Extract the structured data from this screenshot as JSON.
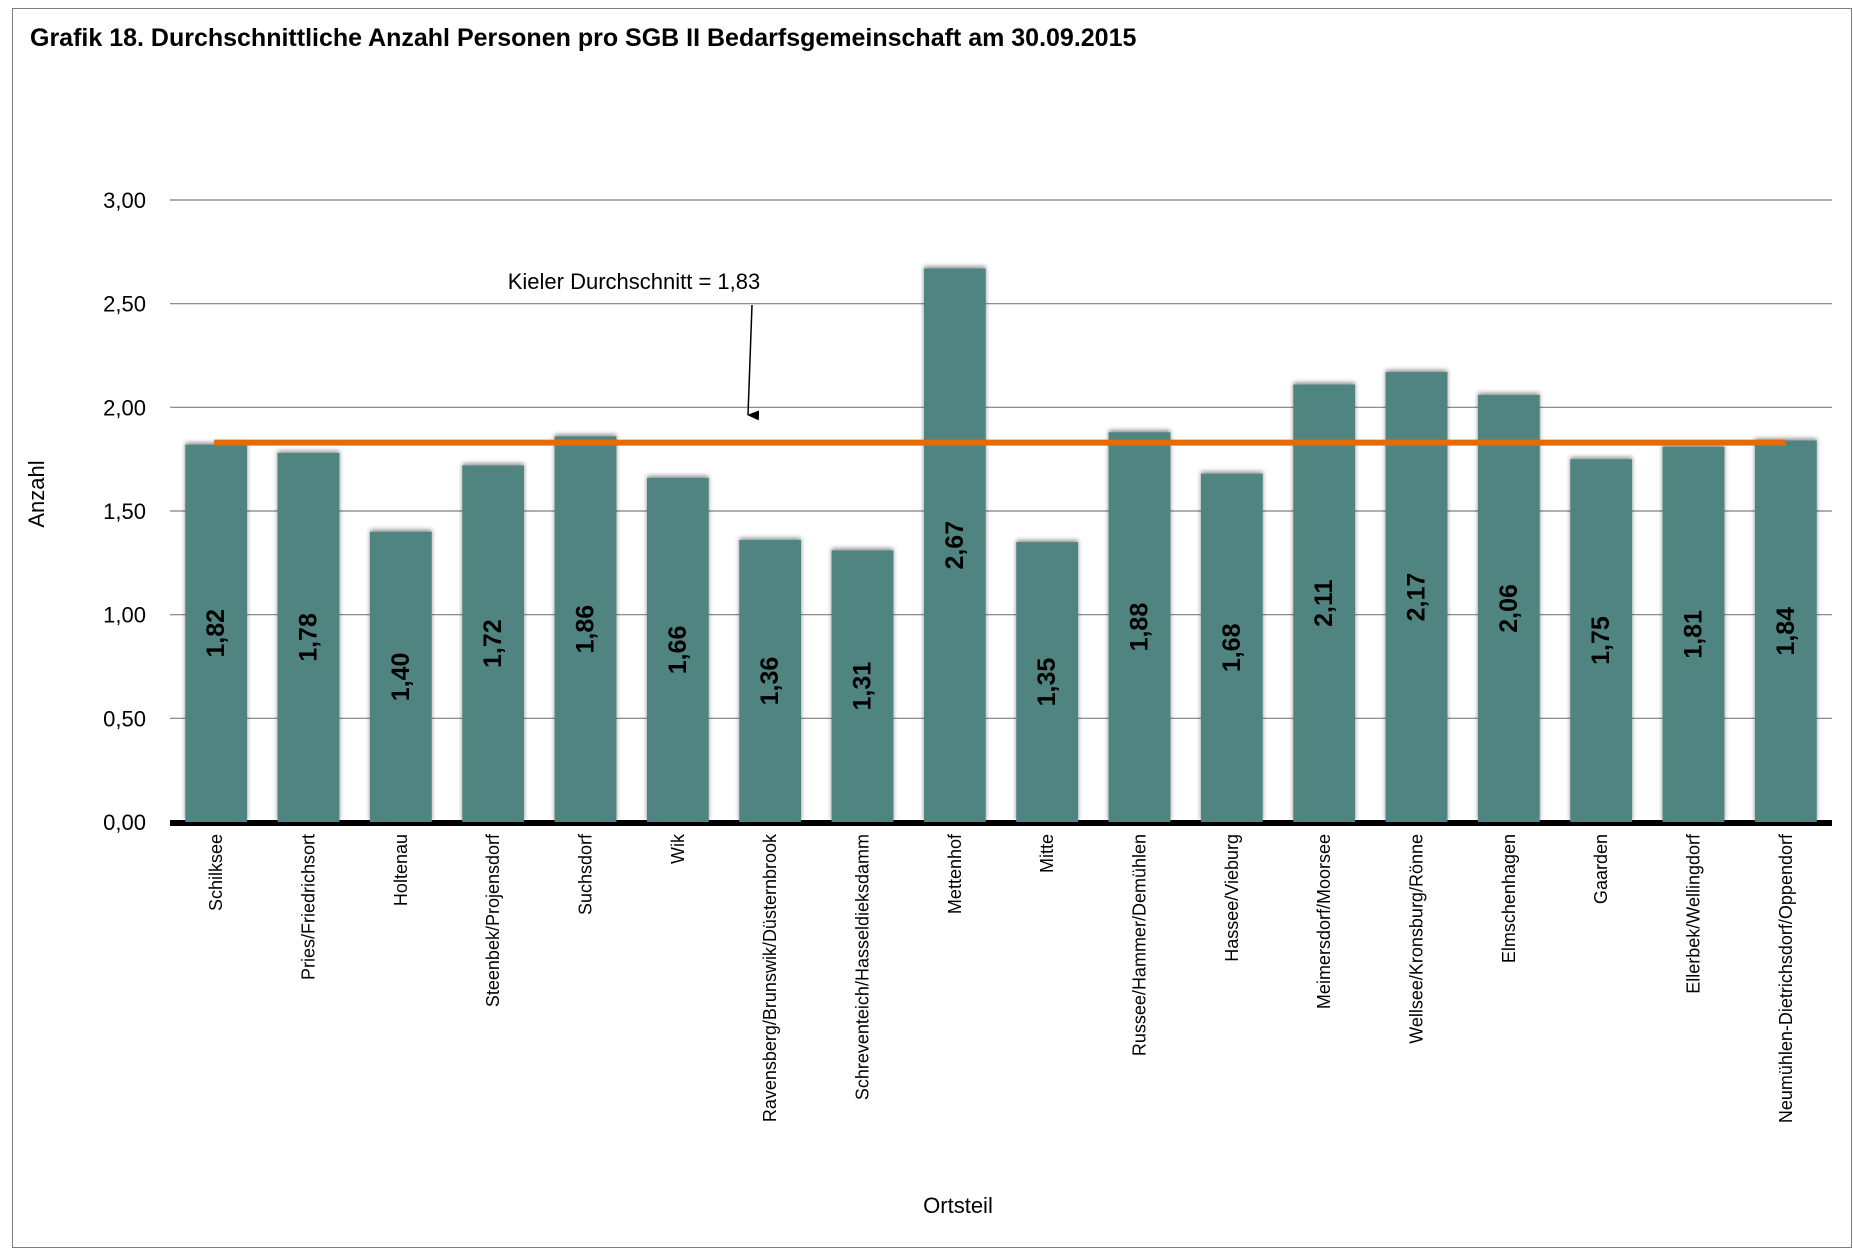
{
  "chart_data": {
    "type": "bar",
    "title": "Grafik 18.  Durchschnittliche Anzahl Personen pro SGB II Bedarfsgemeinschaft am 30.09.2015",
    "xlabel": "Ortsteil",
    "ylabel": "Anzahl",
    "ylim": [
      0,
      3
    ],
    "yticks": [
      "0,00",
      "0,50",
      "1,00",
      "1,50",
      "2,00",
      "2,50",
      "3,00"
    ],
    "grid": true,
    "categories": [
      "Schilksee",
      "Pries/Friedrichsort",
      "Holtenau",
      "Steenbek/Projensdorf",
      "Suchsdorf",
      "Wik",
      "Ravensberg/Brunswik/Düsternbrook",
      "Schreventeich/Hasseldieksdamm",
      "Mettenhof",
      "Mitte",
      "Russee/Hammer/Demühlen",
      "Hassee/Vieburg",
      "Meimersdorf/Moorsee",
      "Wellsee/Kronsburg/Rönne",
      "Elmschenhagen",
      "Gaarden",
      "Ellerbek/Wellingdorf",
      "Neumühlen-Dietrichsdorf/Oppendorf"
    ],
    "values": [
      1.82,
      1.78,
      1.4,
      1.72,
      1.86,
      1.66,
      1.36,
      1.31,
      2.67,
      1.35,
      1.88,
      1.68,
      2.11,
      2.17,
      2.06,
      1.75,
      1.81,
      1.84
    ],
    "value_labels": [
      "1,82",
      "1,78",
      "1,40",
      "1,72",
      "1,86",
      "1,66",
      "1,36",
      "1,31",
      "2,67",
      "1,35",
      "1,88",
      "1,68",
      "2,11",
      "2,17",
      "2,06",
      "1,75",
      "1,81",
      "1,84"
    ],
    "reference_line": {
      "value": 1.83,
      "label": "Kieler Durchschnitt = 1,83",
      "color": "#E36C0A"
    },
    "colors": {
      "bar": "#4F8481",
      "reference": "#E36C0A",
      "axis": "#000000",
      "grid": "#7f7f7f"
    }
  }
}
